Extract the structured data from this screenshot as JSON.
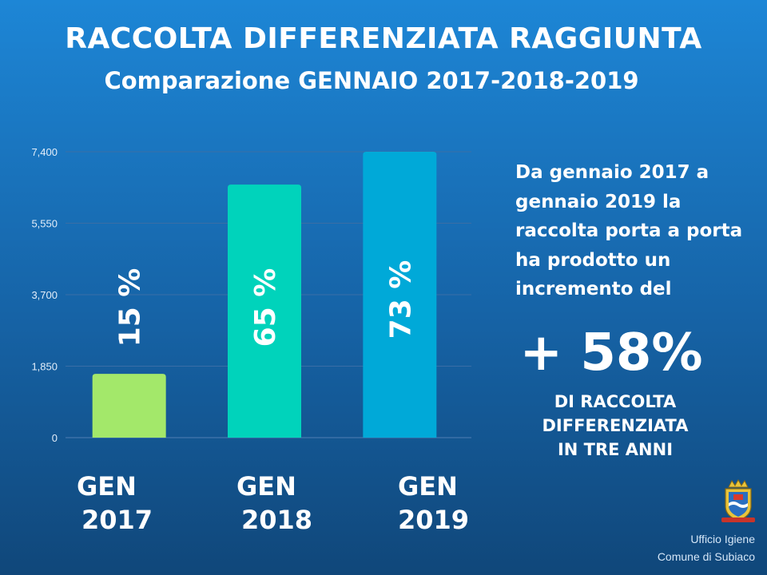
{
  "header": {
    "title": "RACCOLTA DIFFERENZIATA RAGGIUNTA",
    "subtitle": "Comparazione GENNAIO 2017-2018-2019"
  },
  "chart_data": {
    "type": "bar",
    "categories": [
      "GEN 2017",
      "GEN 2018",
      "GEN 2019"
    ],
    "category_lines": [
      [
        "GEN",
        "2017"
      ],
      [
        "GEN",
        "2018"
      ],
      [
        "GEN",
        "2019"
      ]
    ],
    "values": [
      1650,
      6550,
      7400
    ],
    "data_labels": [
      "15 %",
      "65 %",
      "73 %"
    ],
    "bar_colors": [
      "#a3e86a",
      "#00d3bb",
      "#00a9d8"
    ],
    "yticks": [
      "0",
      "1,850",
      "3,700",
      "5,550",
      "7,400"
    ],
    "ylim": [
      0,
      7400
    ],
    "grid": true,
    "title": "",
    "xlabel": "",
    "ylabel": ""
  },
  "side": {
    "text": "Da gennaio 2017 a gennaio 2019 la raccolta porta a porta ha prodotto un incremento del",
    "highlight": "+ 58%",
    "caption_lines": [
      "DI RACCOLTA",
      "DIFFERENZIATA",
      "IN TRE ANNI"
    ]
  },
  "footer": {
    "office_line1": "Ufficio Igiene",
    "office_line2": "Comune di Subiaco",
    "crest_icon": "coat-of-arms-icon"
  },
  "colors": {
    "background_top": "#1d86d6",
    "background_bottom": "#10477a",
    "grid": "#3a6ea6"
  }
}
